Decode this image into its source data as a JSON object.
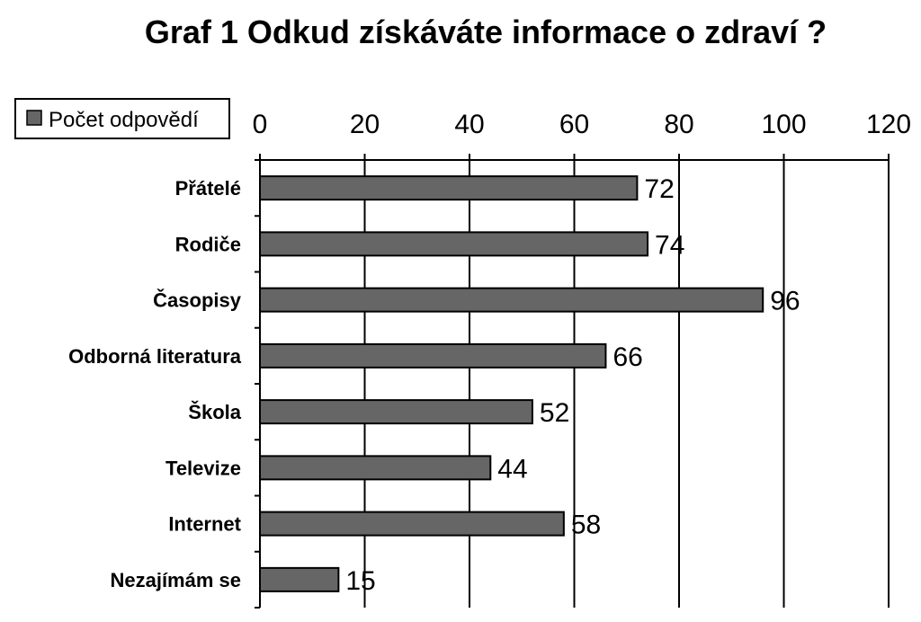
{
  "chart_data": {
    "type": "bar",
    "orientation": "horizontal",
    "title": "Graf 1 Odkud získáváte informace o zdraví ?",
    "categories": [
      "Přátelé",
      "Rodiče",
      "Časopisy",
      "Odborná literatura",
      "Škola",
      "Televize",
      "Internet",
      "Nezajímám se"
    ],
    "series": [
      {
        "name": "Počet odpovědí",
        "values": [
          72,
          74,
          96,
          66,
          52,
          44,
          58,
          15
        ],
        "color": "#666666"
      }
    ],
    "value_labels": [
      "72",
      "74",
      "96",
      "66",
      "52",
      "44",
      "58",
      "15"
    ],
    "xlim": [
      0,
      120
    ],
    "xticks": [
      0,
      20,
      40,
      60,
      80,
      100,
      120
    ],
    "xtick_labels": [
      "0",
      "20",
      "40",
      "60",
      "80",
      "100",
      "120"
    ],
    "xaxis_position": "top",
    "grid": true,
    "legend": {
      "position": "top-left",
      "label": "Počet odpovědí"
    }
  }
}
